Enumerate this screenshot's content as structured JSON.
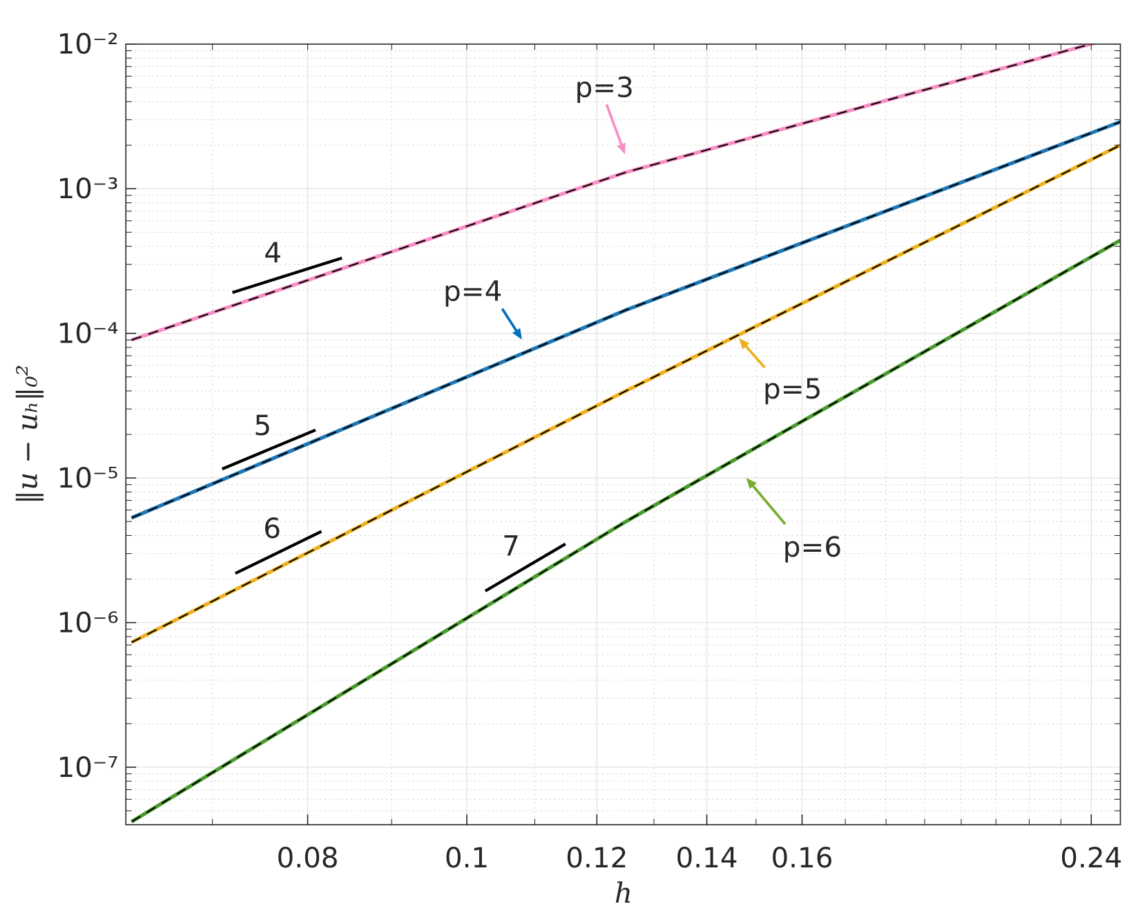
{
  "chart_data": {
    "type": "line",
    "x": [
      0.0625,
      0.125,
      0.25
    ],
    "series": [
      {
        "name": "p=3",
        "color": "#f78fc4",
        "values": [
          9e-05,
          0.0013,
          0.0114
        ]
      },
      {
        "name": "p=4",
        "color": "#1f77b4",
        "values": [
          5.3e-06,
          0.000145,
          0.0029
        ]
      },
      {
        "name": "p=5",
        "color": "#edb120",
        "values": [
          7.3e-07,
          4e-05,
          0.002
        ]
      },
      {
        "name": "p=6",
        "color": "#4a9a2e",
        "values": [
          4.2e-08,
          5e-06,
          0.00044
        ]
      }
    ],
    "xlabel": "h",
    "ylabel": "‖u − uₕ‖₀²",
    "xscale": "log",
    "yscale": "log",
    "xlim": [
      0.062,
      0.25
    ],
    "ylim": [
      4e-08,
      0.01
    ],
    "xticks": [
      0.08,
      0.1,
      0.12,
      0.14,
      0.16,
      0.24
    ],
    "yticks": [
      {
        "value": 1e-07,
        "label": "10⁻⁷"
      },
      {
        "value": 1e-06,
        "label": "10⁻⁶"
      },
      {
        "value": 1e-05,
        "label": "10⁻⁵"
      },
      {
        "value": 0.0001,
        "label": "10⁻⁴"
      },
      {
        "value": 0.001,
        "label": "10⁻³"
      },
      {
        "value": 0.01,
        "label": "10⁻²"
      }
    ],
    "grid": true,
    "annotations": [
      {
        "text": "p=3",
        "color": "#f78fc4"
      },
      {
        "text": "p=4",
        "color": "#0072bd"
      },
      {
        "text": "p=5",
        "color": "#edb120"
      },
      {
        "text": "p=6",
        "color": "#77ac30"
      },
      {
        "text": "4",
        "color": "#000000"
      },
      {
        "text": "5",
        "color": "#000000"
      },
      {
        "text": "6",
        "color": "#000000"
      },
      {
        "text": "7",
        "color": "#000000"
      }
    ]
  }
}
